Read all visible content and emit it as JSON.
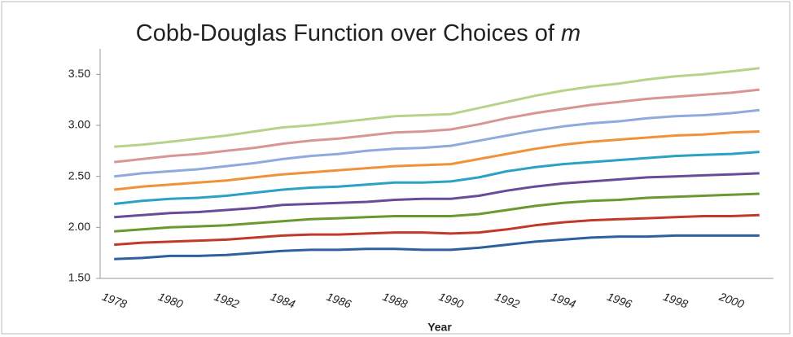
{
  "chart_data": {
    "type": "line",
    "title": "Cobb-Douglas Function over Choices of m",
    "x_label": "Year",
    "categories": [
      "1978",
      null,
      "1980",
      null,
      "1982",
      null,
      "1984",
      null,
      "1986",
      null,
      "1988",
      null,
      "1990",
      null,
      "1992",
      null,
      "1994",
      null,
      "1996",
      null,
      "1998",
      null,
      "2000",
      null
    ],
    "ylim": [
      1.5,
      3.75
    ],
    "yticks": [
      {
        "value": 1.5,
        "label": "1.50"
      },
      {
        "value": 2,
        "label": "2.00"
      },
      {
        "value": 2.5,
        "label": "2.50"
      },
      {
        "value": 3,
        "label": "3.00"
      },
      {
        "value": 3.5,
        "label": "3.50"
      }
    ],
    "grid": false,
    "series": [
      {
        "color": "#2e5f9e",
        "values": [
          1.69,
          1.7,
          1.72,
          1.72,
          1.73,
          1.75,
          1.77,
          1.78,
          1.78,
          1.79,
          1.79,
          1.78,
          1.78,
          1.8,
          1.83,
          1.86,
          1.88,
          1.9,
          1.91,
          1.91,
          1.92,
          1.92,
          1.92,
          1.92
        ]
      },
      {
        "color": "#c0392b",
        "values": [
          1.83,
          1.85,
          1.86,
          1.87,
          1.88,
          1.9,
          1.92,
          1.93,
          1.93,
          1.94,
          1.95,
          1.95,
          1.94,
          1.95,
          1.98,
          2.02,
          2.05,
          2.07,
          2.08,
          2.09,
          2.1,
          2.11,
          2.11,
          2.12
        ]
      },
      {
        "color": "#6a9a2f",
        "values": [
          1.96,
          1.98,
          2.0,
          2.01,
          2.02,
          2.04,
          2.06,
          2.08,
          2.09,
          2.1,
          2.11,
          2.11,
          2.11,
          2.13,
          2.17,
          2.21,
          2.24,
          2.26,
          2.27,
          2.29,
          2.3,
          2.31,
          2.32,
          2.33
        ]
      },
      {
        "color": "#6a4a9a",
        "values": [
          2.1,
          2.12,
          2.14,
          2.15,
          2.17,
          2.19,
          2.22,
          2.23,
          2.24,
          2.25,
          2.27,
          2.28,
          2.28,
          2.31,
          2.36,
          2.4,
          2.43,
          2.45,
          2.47,
          2.49,
          2.5,
          2.51,
          2.52,
          2.53
        ]
      },
      {
        "color": "#2aa3c3",
        "values": [
          2.23,
          2.26,
          2.28,
          2.29,
          2.31,
          2.34,
          2.37,
          2.39,
          2.4,
          2.42,
          2.44,
          2.44,
          2.45,
          2.49,
          2.55,
          2.59,
          2.62,
          2.64,
          2.66,
          2.68,
          2.7,
          2.71,
          2.72,
          2.74
        ]
      },
      {
        "color": "#f0923a",
        "values": [
          2.37,
          2.4,
          2.42,
          2.44,
          2.46,
          2.49,
          2.52,
          2.54,
          2.56,
          2.58,
          2.6,
          2.61,
          2.62,
          2.67,
          2.72,
          2.77,
          2.81,
          2.84,
          2.86,
          2.88,
          2.9,
          2.91,
          2.93,
          2.94
        ]
      },
      {
        "color": "#8faadc",
        "values": [
          2.5,
          2.53,
          2.55,
          2.57,
          2.6,
          2.63,
          2.67,
          2.7,
          2.72,
          2.75,
          2.77,
          2.78,
          2.8,
          2.85,
          2.9,
          2.95,
          2.99,
          3.02,
          3.04,
          3.07,
          3.09,
          3.1,
          3.12,
          3.15
        ]
      },
      {
        "color": "#d99594",
        "values": [
          2.64,
          2.67,
          2.7,
          2.72,
          2.75,
          2.78,
          2.82,
          2.85,
          2.87,
          2.9,
          2.93,
          2.94,
          2.96,
          3.01,
          3.07,
          3.12,
          3.16,
          3.2,
          3.23,
          3.26,
          3.28,
          3.3,
          3.32,
          3.35
        ]
      },
      {
        "color": "#b5d48a",
        "values": [
          2.79,
          2.81,
          2.84,
          2.87,
          2.9,
          2.94,
          2.98,
          3.0,
          3.03,
          3.06,
          3.09,
          3.1,
          3.11,
          3.17,
          3.23,
          3.29,
          3.34,
          3.38,
          3.41,
          3.45,
          3.48,
          3.5,
          3.53,
          3.56
        ]
      }
    ]
  }
}
